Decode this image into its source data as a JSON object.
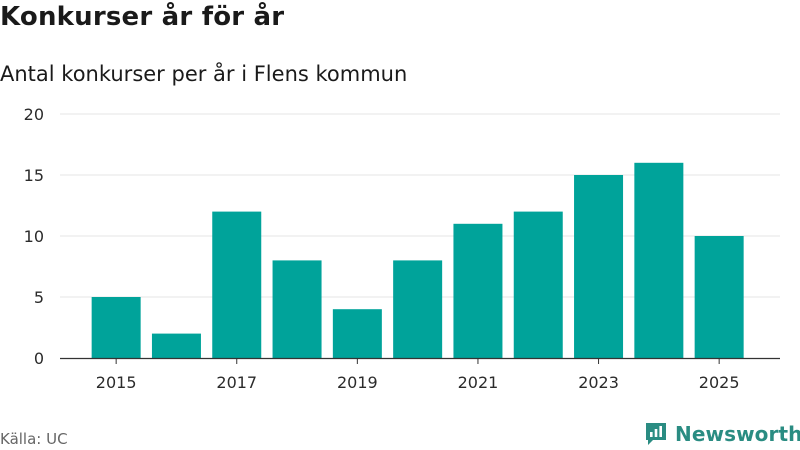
{
  "header": {
    "title": "Konkurser år för år",
    "subtitle": "Antal konkurser per år i Flens kommun"
  },
  "footer": {
    "source": "Källa: UC",
    "brand": "Newsworthy"
  },
  "colors": {
    "bar": "#00a39a",
    "brand": "#2a8c82",
    "grid": "#e4e4e4",
    "axis": "#333333"
  },
  "chart_data": {
    "type": "bar",
    "title": "Konkurser år för år",
    "subtitle": "Antal konkurser per år i Flens kommun",
    "categories": [
      "2015",
      "2016",
      "2017",
      "2018",
      "2019",
      "2020",
      "2021",
      "2022",
      "2023",
      "2024",
      "2025"
    ],
    "values": [
      5,
      2,
      12,
      8,
      4,
      8,
      11,
      12,
      15,
      16,
      10
    ],
    "xtick_labels": [
      "2015",
      "2017",
      "2019",
      "2021",
      "2023",
      "2025"
    ],
    "yticks": [
      0,
      5,
      10,
      15,
      20
    ],
    "ylim": [
      0,
      20
    ],
    "xlabel": "",
    "ylabel": "",
    "grid": true
  }
}
